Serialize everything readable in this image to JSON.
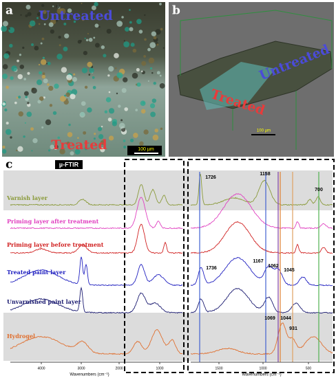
{
  "panel_a": {
    "label": "a",
    "top_text": "Untreated",
    "bottom_text": "Treated",
    "scale": "100 µm"
  },
  "panel_b": {
    "label": "b",
    "top_text": "Untreated",
    "bottom_text": "Treated",
    "scale": "100 µm"
  },
  "panel_c": {
    "label": "c",
    "method": "µ-FTIR",
    "layers": [
      "Varnish layer",
      "Priming layer after treatment",
      "Priming layer before treatment",
      "Treated paint layer",
      "Unvarnished paint layer",
      "Hydrogel"
    ],
    "left_axis": {
      "ticks": [
        "4000",
        "3000",
        "2000",
        "1000"
      ],
      "label": "Wavenumbers (cm⁻¹)"
    },
    "right_axis": {
      "ticks": [
        "1500",
        "1000",
        "500"
      ],
      "label": "Wavenumbers (cm⁻¹)"
    },
    "peaks": [
      "1726",
      "1158",
      "700",
      "1736",
      "1167",
      "1062",
      "1045",
      "1069",
      "1044",
      "931"
    ]
  }
}
